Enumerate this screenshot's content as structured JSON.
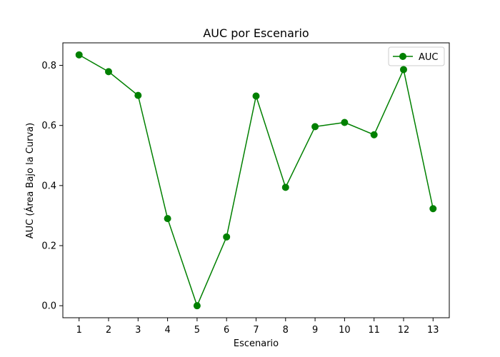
{
  "chart_data": {
    "type": "line",
    "title": "AUC por Escenario",
    "xlabel": "Escenario",
    "ylabel": "AUC (Área Bajo la Curva)",
    "x": [
      1,
      2,
      3,
      4,
      5,
      6,
      7,
      8,
      9,
      10,
      11,
      12,
      13
    ],
    "xticks": [
      "1",
      "2",
      "3",
      "4",
      "5",
      "6",
      "7",
      "8",
      "9",
      "10",
      "11",
      "12",
      "13"
    ],
    "xlim": [
      0.45,
      13.55
    ],
    "ylim": [
      -0.04,
      0.875
    ],
    "yticks": [
      0.0,
      0.2,
      0.4,
      0.6,
      0.8
    ],
    "ytick_labels": [
      "0.0",
      "0.2",
      "0.4",
      "0.6",
      "0.8"
    ],
    "series": [
      {
        "name": "AUC",
        "color": "#008000",
        "marker": "circle",
        "values": [
          0.835,
          0.779,
          0.7,
          0.29,
          0.0,
          0.229,
          0.698,
          0.394,
          0.596,
          0.61,
          0.569,
          0.786,
          0.323
        ]
      }
    ],
    "legend": {
      "position": "top-right",
      "labels": [
        "AUC"
      ]
    },
    "grid": false
  }
}
